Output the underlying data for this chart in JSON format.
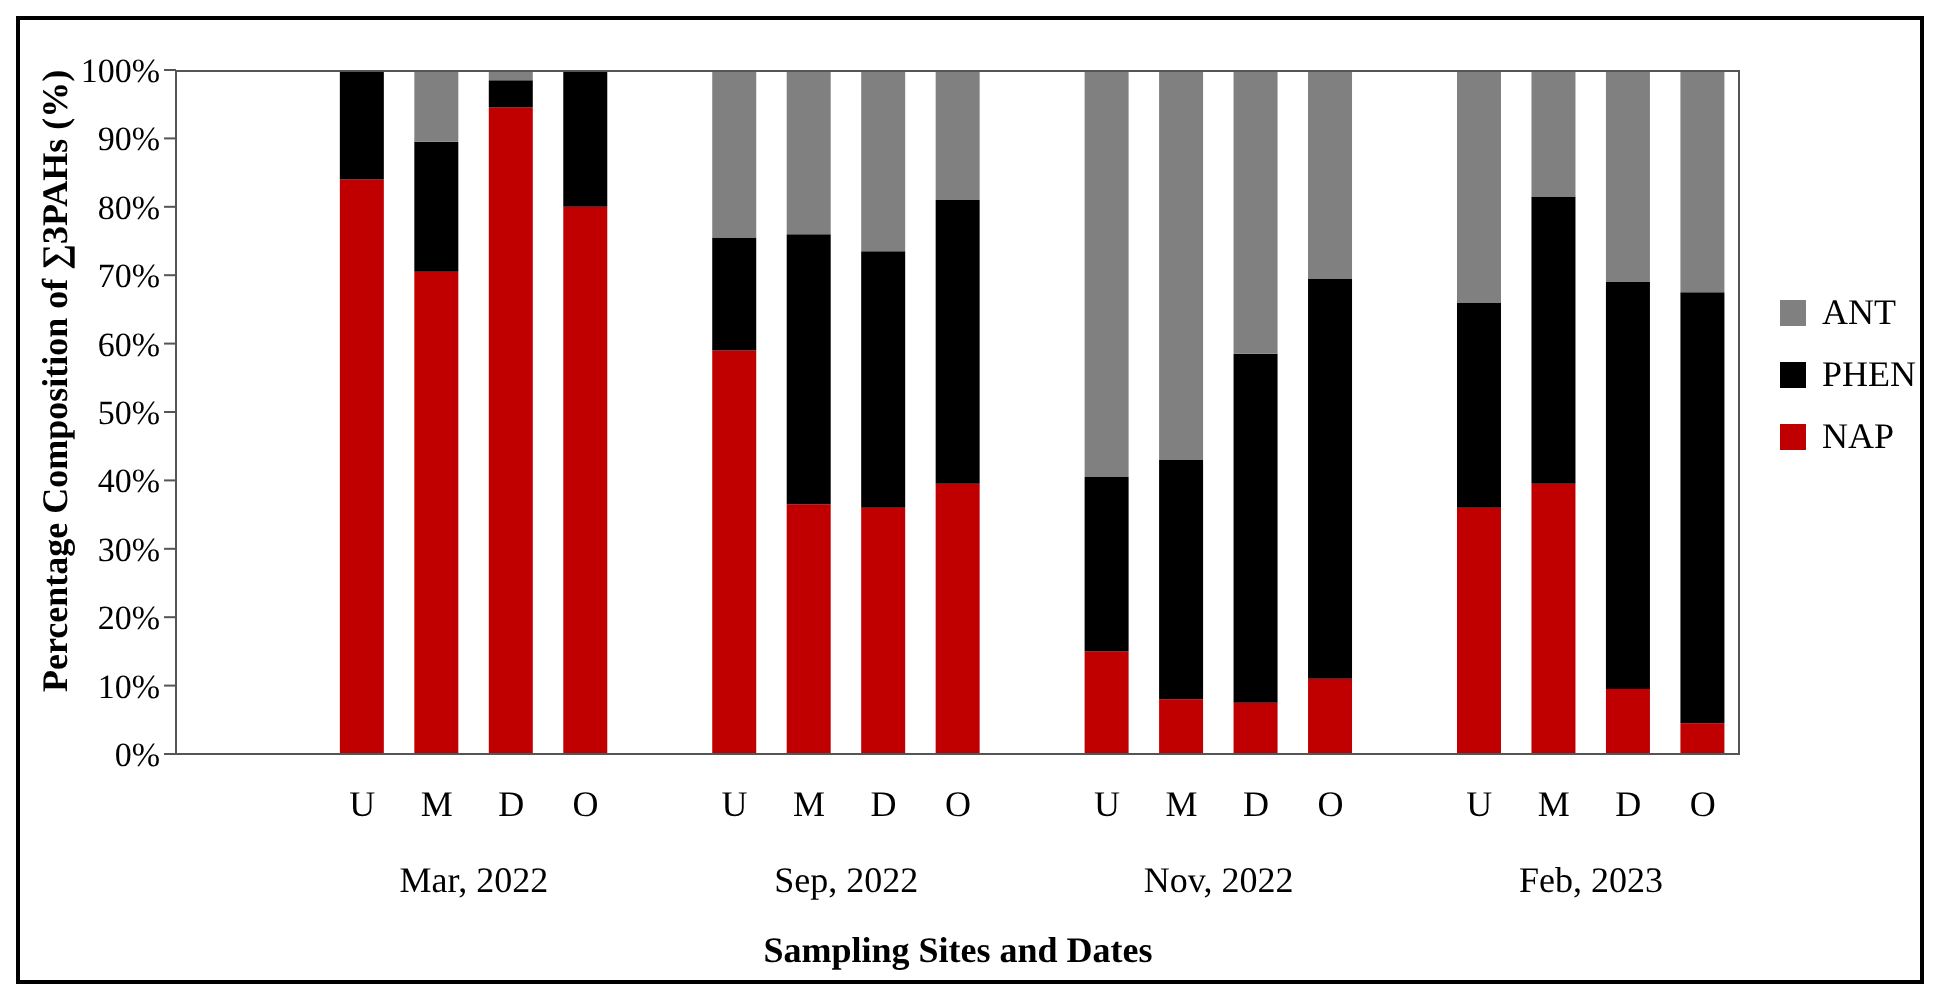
{
  "chart_data": {
    "type": "bar",
    "stacked": true,
    "xlabel": "Sampling Sites and Dates",
    "ylabel": "Percentage Composition  of ∑3PAHs  (%)",
    "categories": [
      null,
      null,
      "U",
      "M",
      "D",
      "O",
      null,
      "U",
      "M",
      "D",
      "O",
      null,
      "U",
      "M",
      "D",
      "O",
      null,
      "U",
      "M",
      "D",
      "O"
    ],
    "series": [
      {
        "name": "NAP",
        "color": "#c00000",
        "values": [
          null,
          null,
          84,
          70.5,
          94.5,
          80,
          null,
          59,
          36.5,
          36,
          39.5,
          null,
          15,
          8,
          7.5,
          11,
          null,
          36,
          39.5,
          9.5,
          4.5
        ]
      },
      {
        "name": "PHEN",
        "color": "#000000",
        "values": [
          null,
          null,
          16,
          19,
          4,
          20,
          null,
          16.5,
          39.5,
          37.5,
          41.5,
          null,
          25.5,
          35,
          51,
          58.5,
          null,
          30,
          42,
          59.5,
          63
        ]
      },
      {
        "name": "ANT",
        "color": "#808080",
        "values": [
          null,
          null,
          0,
          10.5,
          1.5,
          0,
          null,
          24.5,
          24,
          26.5,
          19,
          null,
          59.5,
          57,
          41.5,
          30.5,
          null,
          34,
          18.5,
          31,
          32.5
        ]
      }
    ],
    "ylim": [
      0,
      100
    ],
    "yticks": [
      {
        "value": 0,
        "label": "0%"
      },
      {
        "value": 10,
        "label": "10%"
      },
      {
        "value": 20,
        "label": "20%"
      },
      {
        "value": 30,
        "label": "30%"
      },
      {
        "value": 40,
        "label": "40%"
      },
      {
        "value": 50,
        "label": "50%"
      },
      {
        "value": 60,
        "label": "60%"
      },
      {
        "value": 70,
        "label": "70%"
      },
      {
        "value": 80,
        "label": "80%"
      },
      {
        "value": 90,
        "label": "90%"
      },
      {
        "value": 100,
        "label": "100%"
      }
    ],
    "annotations": [
      "Mar, 2022",
      "Sep, 2022",
      "Nov, 2022",
      "Feb, 2023"
    ],
    "legend": "right",
    "grid": false
  }
}
